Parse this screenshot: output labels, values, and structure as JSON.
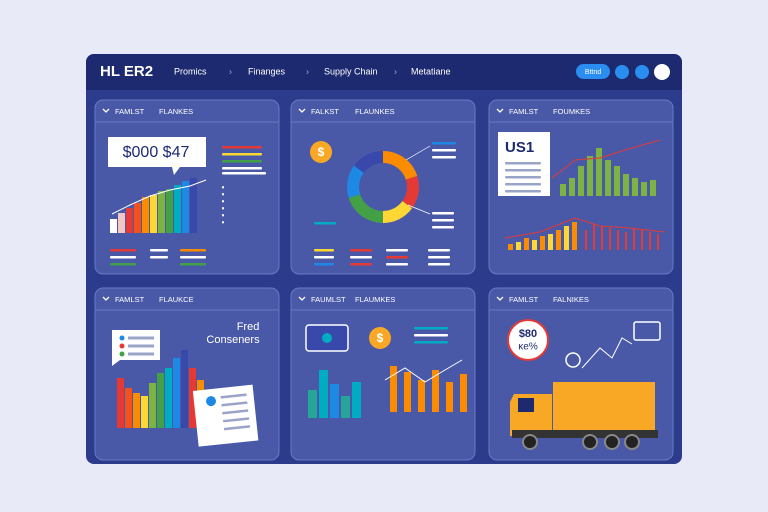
{
  "header": {
    "title": "HL ER2",
    "nav": [
      "Promics",
      "Finanges",
      "Supply Chain",
      "Metatiane"
    ],
    "button": "Bttnd"
  },
  "panels": [
    {
      "tabs": [
        "FAMLST",
        "FLANKES"
      ],
      "texts": [
        "$000 $47"
      ]
    },
    {
      "tabs": [
        "FALKST",
        "FLAUNKES"
      ],
      "texts": [
        "$"
      ]
    },
    {
      "tabs": [
        "FAMLST",
        "FOUMKES"
      ],
      "texts": [
        "US1"
      ]
    },
    {
      "tabs": [
        "FAMLST",
        "FLAUKCE"
      ],
      "texts": [
        "Fred",
        "Conseners"
      ]
    },
    {
      "tabs": [
        "FAUMLST",
        "FLAUMKES"
      ],
      "texts": [
        "$"
      ]
    },
    {
      "tabs": [
        "FAMLST",
        "FALNIKES"
      ],
      "texts": [
        "$80",
        "ĸe%"
      ]
    }
  ]
}
